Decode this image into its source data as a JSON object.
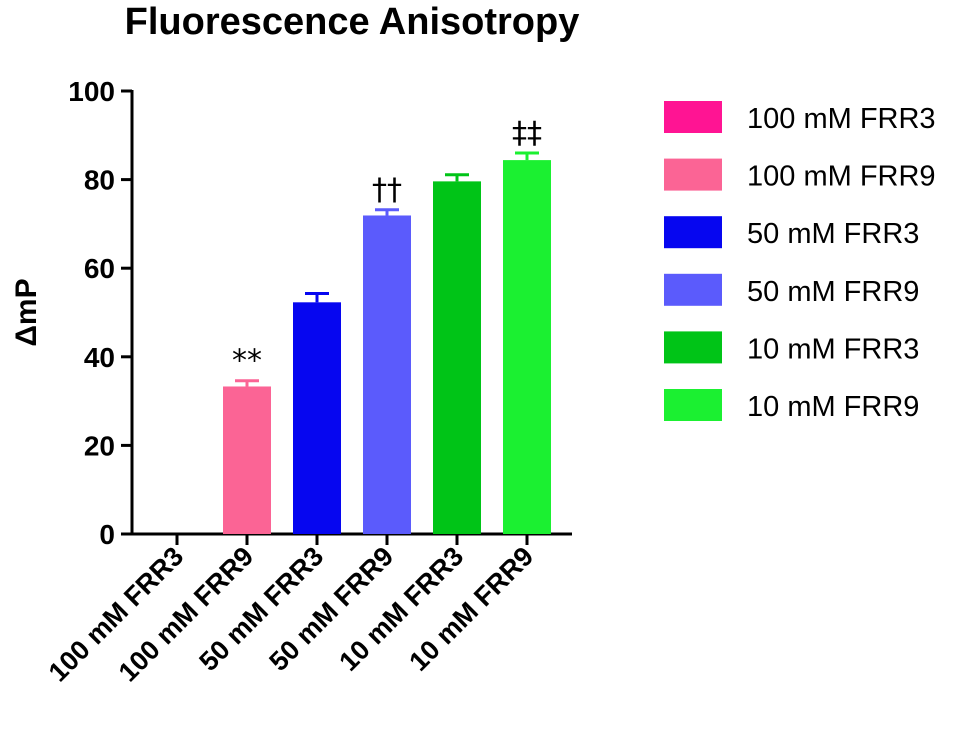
{
  "chart_data": {
    "type": "bar",
    "title": "Fluorescence Anisotropy",
    "ylabel": "ΔmP",
    "xlabel": "",
    "ylim": [
      0,
      100
    ],
    "yticks": [
      0,
      20,
      40,
      60,
      80,
      100
    ],
    "grid": false,
    "legend_position": "right",
    "categories": [
      "100 mM FRR3",
      "100 mM FRR9",
      "50 mM FRR3",
      "50 mM FRR9",
      "10 mM FRR3",
      "10 mM FRR9"
    ],
    "values": [
      0,
      33.3,
      52.3,
      71.9,
      79.6,
      84.4
    ],
    "errors": [
      0,
      1.3,
      2.0,
      1.3,
      1.5,
      1.6
    ],
    "colors": [
      "#ff1493",
      "#fb6495",
      "#0606f0",
      "#5b5bfc",
      "#00c417",
      "#1bf031"
    ],
    "annotations": [
      "",
      "**",
      "",
      "††",
      "",
      "‡‡"
    ],
    "legend": [
      "100 mM FRR3",
      "100 mM FRR9",
      "50 mM FRR3",
      "50 mM FRR9",
      "10 mM FRR3",
      "10 mM FRR9"
    ]
  }
}
